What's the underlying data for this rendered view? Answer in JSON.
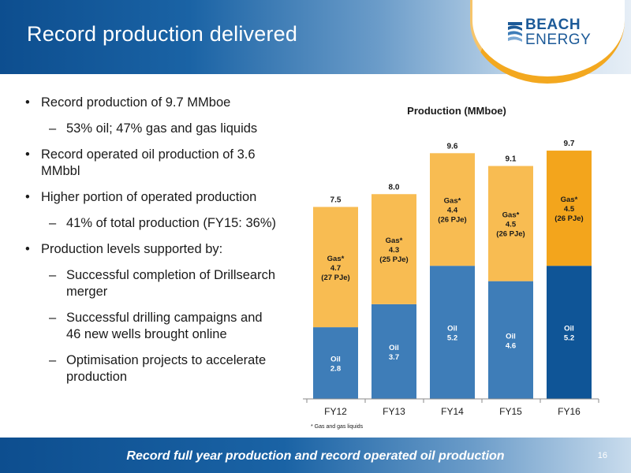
{
  "header": {
    "title": "Record production delivered"
  },
  "logo": {
    "line1": "BEACH",
    "line2": "ENERGY",
    "icon": "beach-energy-logo-icon"
  },
  "bullets": [
    {
      "level": 1,
      "text": "Record production of 9.7 MMboe"
    },
    {
      "level": 2,
      "text": "53% oil; 47% gas and gas liquids"
    },
    {
      "level": 1,
      "text": "Record operated oil production of 3.6 MMbbl"
    },
    {
      "level": 1,
      "text": "Higher portion of operated production"
    },
    {
      "level": 2,
      "text": "41% of total production (FY15: 36%)"
    },
    {
      "level": 1,
      "text": "Production levels supported by:"
    },
    {
      "level": 2,
      "text": "Successful completion of Drillsearch merger"
    },
    {
      "level": 2,
      "text": "Successful drilling campaigns and 46 new wells brought online"
    },
    {
      "level": 2,
      "text": "Optimisation projects to accelerate production"
    }
  ],
  "chart_data": {
    "type": "bar",
    "stacked": true,
    "title": "Production (MMboe)",
    "categories": [
      "FY12",
      "FY13",
      "FY14",
      "FY15",
      "FY16"
    ],
    "series": [
      {
        "name": "Oil",
        "values": [
          2.8,
          3.7,
          5.2,
          4.6,
          5.2
        ],
        "labels": [
          "Oil\n2.8",
          "Oil\n3.7",
          "Oil\n5.2",
          "Oil\n4.6",
          "Oil\n5.2"
        ]
      },
      {
        "name": "Gas*",
        "values": [
          4.7,
          4.3,
          4.4,
          4.5,
          4.5
        ],
        "labels": [
          "Gas*\n4.7\n(27 PJe)",
          "Gas*\n4.3\n(25 PJe)",
          "Gas*\n4.4\n(26 PJe)",
          "Gas*\n4.5\n(26 PJe)",
          "Gas*\n4.5\n(26 PJe)"
        ]
      }
    ],
    "totals": [
      "7.5",
      "8.0",
      "9.6",
      "9.1",
      "9.7"
    ],
    "ylim": [
      0,
      10
    ],
    "grid": false,
    "footnote": "* Gas and gas liquids",
    "colors": {
      "oil": "#3e7db8",
      "gas": "#f8bc52",
      "oil_highlight": "#0f5597",
      "gas_highlight": "#f3a51c"
    },
    "highlight_index": 4
  },
  "footer": {
    "text": "Record full year production and record operated oil production",
    "page": "16"
  }
}
